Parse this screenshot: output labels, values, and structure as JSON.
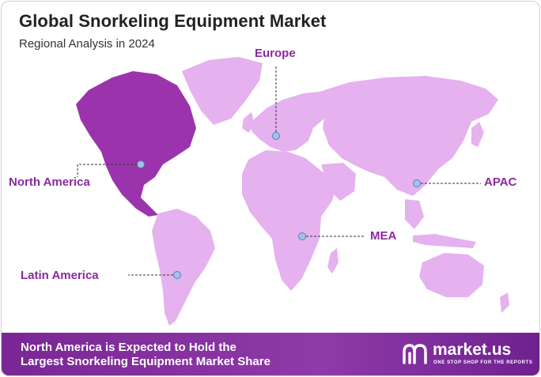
{
  "header": {
    "title": "Global Snorkeling Equipment Market",
    "subtitle": "Regional Analysis in 2024"
  },
  "regions": [
    {
      "key": "europe",
      "label": "Europe"
    },
    {
      "key": "north_america",
      "label": "North America",
      "highlighted": true
    },
    {
      "key": "apac",
      "label": "APAC"
    },
    {
      "key": "mea",
      "label": "MEA"
    },
    {
      "key": "latin_america",
      "label": "Latin America"
    }
  ],
  "footer": {
    "line1": "North America is Expected to Hold the",
    "line2": "Largest Snorkeling Equipment Market Share"
  },
  "brand": {
    "name": "market.us",
    "tagline": "ONE STOP SHOP FOR THE REPORTS"
  },
  "colors": {
    "land": "#e5b1ef",
    "highlight": "#9b34ac",
    "label": "#8a2a9e",
    "marker": "#9fc3ea",
    "footer": "#7a2694"
  }
}
